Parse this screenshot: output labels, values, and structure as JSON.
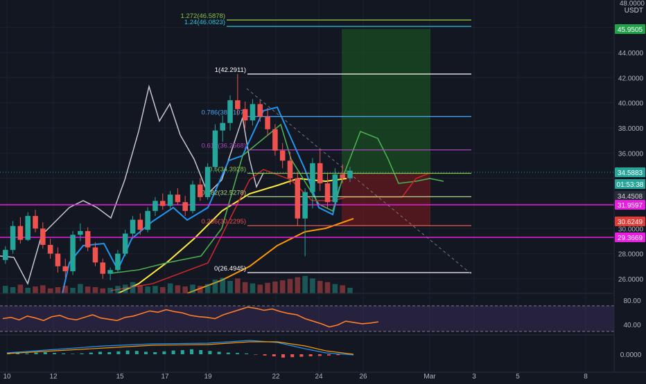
{
  "quote_label": "USDT",
  "price_scale": {
    "top_partial": "48.0000",
    "ticks": [
      "44.0000",
      "42.0000",
      "40.0000",
      "38.0000",
      "36.0000",
      "30.0000",
      "28.0000",
      "26.0000"
    ],
    "badges": [
      {
        "text": "45.9505",
        "bg": "#1fa24a",
        "fg": "#ffffff"
      },
      {
        "text": "34.5883",
        "bg": "#26a69a",
        "fg": "#ffffff"
      },
      {
        "text": "01:53:38",
        "bg": "#26a69a",
        "fg": "#ffffff"
      },
      {
        "text": "34.4508",
        "bg": "#2a2e39",
        "fg": "#d1d4dc"
      },
      {
        "text": "31.9597",
        "bg": "#e91ee3",
        "fg": "#ffffff"
      },
      {
        "text": "30.6249",
        "bg": "#e53935",
        "fg": "#ffffff"
      },
      {
        "text": "29.3669",
        "bg": "#e91ee3",
        "fg": "#ffffff"
      }
    ]
  },
  "fib_levels": [
    {
      "label": "1.272(46.5878)",
      "color": "#8bc34a"
    },
    {
      "label": "1.24(46.0823)",
      "color": "#26c6da"
    },
    {
      "label": "1(42.2911)",
      "color": "#ffffff"
    },
    {
      "label": "0.786(38.9107)",
      "color": "#42a5f5"
    },
    {
      "label": "0.618(36.2568)",
      "color": "#ab47bc"
    },
    {
      "label": "0.5(34.3928)",
      "color": "#8bc34a"
    },
    {
      "label": "0.382(32.5278)",
      "color": "#aed581"
    },
    {
      "label": "0.236(30.2295)",
      "color": "#ef5350"
    },
    {
      "label": "0(26.4945)",
      "color": "#ffffff"
    }
  ],
  "rsi_pane": {
    "ticks": [
      "80.00",
      "40.00"
    ]
  },
  "macd_pane": {
    "ticks": [
      "0.0000"
    ]
  },
  "time_axis": {
    "labels": [
      "10",
      "12",
      "15",
      "17",
      "19",
      "22",
      "24",
      "26",
      "Mar",
      "3",
      "5",
      "8"
    ]
  },
  "chart_data": {
    "type": "candlestick",
    "symbol_quote": "USDT",
    "y_range": [
      25,
      48
    ],
    "fib_retracement": [
      {
        "ratio": 1.272,
        "price": 46.5878
      },
      {
        "ratio": 1.24,
        "price": 46.0823
      },
      {
        "ratio": 1,
        "price": 42.2911
      },
      {
        "ratio": 0.786,
        "price": 38.9107
      },
      {
        "ratio": 0.618,
        "price": 36.2568
      },
      {
        "ratio": 0.5,
        "price": 34.3928
      },
      {
        "ratio": 0.382,
        "price": 32.5278
      },
      {
        "ratio": 0.236,
        "price": 30.2295
      },
      {
        "ratio": 0,
        "price": 26.4945
      }
    ],
    "horizontal_levels": [
      31.9597,
      29.3669
    ],
    "long_position": {
      "target": 45.9505,
      "entry": 34.4508,
      "stop": 30.6249
    },
    "last_price": 34.5883,
    "countdown": "01:53:38",
    "candles": [
      [
        27.5,
        28.6,
        27.2,
        28.3
      ],
      [
        28.3,
        30.6,
        28.0,
        30.2
      ],
      [
        30.2,
        30.9,
        28.8,
        29.1
      ],
      [
        29.1,
        31.3,
        29.0,
        31.0
      ],
      [
        31.0,
        31.5,
        29.7,
        30.0
      ],
      [
        30.0,
        30.5,
        28.4,
        28.7
      ],
      [
        28.7,
        29.2,
        27.6,
        28.0
      ],
      [
        28.0,
        28.5,
        26.5,
        27.0
      ],
      [
        27.0,
        27.6,
        26.1,
        26.6
      ],
      [
        26.6,
        29.8,
        26.3,
        29.5
      ],
      [
        29.5,
        30.4,
        29.0,
        29.8
      ],
      [
        29.8,
        30.1,
        28.2,
        28.5
      ],
      [
        28.5,
        28.9,
        27.0,
        27.3
      ],
      [
        27.3,
        27.6,
        26.0,
        26.4
      ],
      [
        26.4,
        26.9,
        25.9,
        26.7
      ],
      [
        26.7,
        28.3,
        26.5,
        28.0
      ],
      [
        28.0,
        29.9,
        27.8,
        29.6
      ],
      [
        29.6,
        31.0,
        29.3,
        30.7
      ],
      [
        30.7,
        31.2,
        29.5,
        29.9
      ],
      [
        29.9,
        31.7,
        29.7,
        31.4
      ],
      [
        31.4,
        32.5,
        31.0,
        32.2
      ],
      [
        32.2,
        32.8,
        31.5,
        31.8
      ],
      [
        31.8,
        33.0,
        31.6,
        32.7
      ],
      [
        32.7,
        33.2,
        31.9,
        32.1
      ],
      [
        32.1,
        32.6,
        31.0,
        31.4
      ],
      [
        31.4,
        33.8,
        31.2,
        33.5
      ],
      [
        33.5,
        34.0,
        32.2,
        32.5
      ],
      [
        32.5,
        35.2,
        32.3,
        34.9
      ],
      [
        34.9,
        38.3,
        34.6,
        37.8
      ],
      [
        37.8,
        39.0,
        36.9,
        38.4
      ],
      [
        38.4,
        40.6,
        37.8,
        40.2
      ],
      [
        40.2,
        42.3,
        39.0,
        39.5
      ],
      [
        39.5,
        40.1,
        38.0,
        38.6
      ],
      [
        38.6,
        40.3,
        38.2,
        39.9
      ],
      [
        39.9,
        40.2,
        38.5,
        38.9
      ],
      [
        38.9,
        39.6,
        37.4,
        37.9
      ],
      [
        37.9,
        38.3,
        35.8,
        36.2
      ],
      [
        36.2,
        36.8,
        34.8,
        35.4
      ],
      [
        35.4,
        36.1,
        33.5,
        34.0
      ],
      [
        34.0,
        34.5,
        30.2,
        30.8
      ],
      [
        30.8,
        33.2,
        27.8,
        32.9
      ],
      [
        32.9,
        35.6,
        31.6,
        35.2
      ],
      [
        35.2,
        36.3,
        33.0,
        33.6
      ],
      [
        33.6,
        34.4,
        31.6,
        32.1
      ],
      [
        32.1,
        34.8,
        31.8,
        34.3
      ],
      [
        34.3,
        35.1,
        33.6,
        34.0
      ],
      [
        34.0,
        34.9,
        33.7,
        34.6
      ]
    ],
    "volume": [
      12,
      10,
      14,
      9,
      11,
      13,
      8,
      10,
      12,
      9,
      15,
      11,
      10,
      8,
      9,
      12,
      14,
      18,
      13,
      11,
      12,
      10,
      16,
      13,
      11,
      14,
      12,
      15,
      22,
      25,
      20,
      24,
      18,
      16,
      14,
      17,
      19,
      21,
      23,
      26,
      28,
      24,
      20,
      18,
      15,
      13,
      9
    ],
    "rsi_series": [
      60,
      62,
      58,
      64,
      61,
      57,
      63,
      65,
      60,
      58,
      62,
      66,
      61,
      59,
      57,
      62,
      64,
      68,
      72,
      70,
      74,
      71,
      69,
      65,
      63,
      62,
      60,
      66,
      70,
      74,
      78,
      76,
      73,
      75,
      71,
      68,
      66,
      60,
      56,
      52,
      47,
      50,
      56,
      54,
      52,
      53,
      55
    ],
    "macd_hist": [
      0.02,
      0.03,
      0.02,
      0.04,
      0.05,
      0.03,
      0.02,
      0.01,
      0.02,
      0.04,
      0.06,
      0.05,
      0.07,
      0.09,
      0.08,
      0.06,
      0.05,
      0.07,
      0.09,
      0.1,
      0.12,
      0.1,
      0.08,
      0.06,
      0.04,
      0.03,
      0.02,
      -0.01,
      -0.03,
      -0.05,
      -0.08,
      -0.07,
      -0.06,
      -0.05,
      -0.04,
      -0.03,
      -0.02,
      -0.01
    ]
  },
  "colors": {
    "bg": "#131722",
    "up": "#26a69a",
    "down": "#ef5350",
    "grid": "#1e222d",
    "text": "#b2b5be"
  }
}
